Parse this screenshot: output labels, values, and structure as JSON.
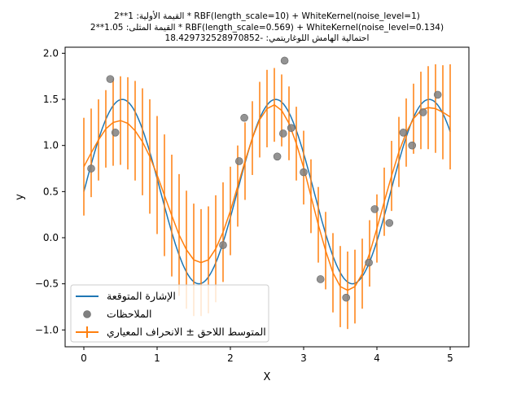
{
  "chart_data": {
    "type": "line",
    "title_lines": [
      "القيمة الأولية: 1**2 * RBF(length_scale=10) + WhiteKernel(noise_level=1)",
      "القيمة المثلى: 1.05**2 * RBF(length_scale=0.569) + WhiteKernel(noise_level=0.134)",
      "احتمالية الهامش اللوغاريتمي: -18.429732528970852"
    ],
    "xlabel": "X",
    "ylabel": "y",
    "xlim": [
      -0.25,
      5.25
    ],
    "ylim": [
      -1.2,
      2.08
    ],
    "xticks": [
      "0",
      "1",
      "2",
      "3",
      "4",
      "5"
    ],
    "xtick_values": [
      0,
      1,
      2,
      3,
      4,
      5
    ],
    "yticks": [
      "−1.0",
      "−0.5",
      "0.0",
      "0.5",
      "1.0",
      "1.5",
      "2.0"
    ],
    "ytick_values": [
      -1.0,
      -0.5,
      0.0,
      0.5,
      1.0,
      1.5,
      2.0
    ],
    "grid": false,
    "legend_position": "lower left",
    "legend": [
      {
        "label": "الإشارة المتوقعة",
        "marker": "line",
        "color": "#1f77b4"
      },
      {
        "label": "الملاحظات",
        "marker": "circle",
        "color": "#808080"
      },
      {
        "label": "المتوسط اللاحق ± الانحراف المعياري",
        "marker": "errorbar",
        "color": "#ff7f0e"
      }
    ],
    "series": [
      {
        "name": "الإشارة المتوقعة",
        "type": "line",
        "color": "#1f77b4",
        "function": "0.5 + sin(3x)",
        "x_range": [
          0,
          5
        ]
      },
      {
        "name": "الملاحظات",
        "type": "scatter",
        "color": "#808080",
        "x": [
          0.1,
          0.36,
          0.43,
          1.9,
          2.12,
          2.19,
          2.64,
          2.72,
          2.74,
          2.83,
          3.0,
          3.23,
          3.58,
          3.89,
          3.97,
          4.17,
          4.36,
          4.48,
          4.63,
          4.83
        ],
        "y": [
          0.75,
          1.72,
          1.14,
          -0.08,
          0.83,
          1.3,
          0.88,
          1.13,
          1.92,
          1.19,
          0.71,
          -0.45,
          -0.65,
          -0.27,
          0.31,
          0.16,
          1.14,
          1.0,
          1.36,
          1.55
        ]
      },
      {
        "name": "المتوسط اللاحق ± الانحراف المعياري",
        "type": "errorbar",
        "color": "#ff7f0e",
        "x": [
          0.0,
          0.1,
          0.2,
          0.3,
          0.4,
          0.5,
          0.6,
          0.7,
          0.8,
          0.9,
          1.0,
          1.1,
          1.2,
          1.3,
          1.4,
          1.5,
          1.6,
          1.7,
          1.8,
          1.9,
          2.0,
          2.1,
          2.2,
          2.3,
          2.4,
          2.5,
          2.6,
          2.7,
          2.8,
          2.9,
          3.0,
          3.1,
          3.2,
          3.3,
          3.4,
          3.5,
          3.6,
          3.7,
          3.8,
          3.9,
          4.0,
          4.1,
          4.2,
          4.3,
          4.4,
          4.5,
          4.6,
          4.7,
          4.8,
          4.9,
          5.0
        ],
        "mean": [
          0.77,
          0.92,
          1.06,
          1.18,
          1.25,
          1.27,
          1.24,
          1.16,
          1.04,
          0.88,
          0.68,
          0.46,
          0.24,
          0.03,
          -0.13,
          -0.24,
          -0.27,
          -0.24,
          -0.12,
          0.06,
          0.29,
          0.56,
          0.83,
          1.08,
          1.28,
          1.4,
          1.44,
          1.38,
          1.24,
          1.02,
          0.76,
          0.45,
          0.14,
          -0.14,
          -0.38,
          -0.53,
          -0.57,
          -0.53,
          -0.39,
          -0.17,
          0.1,
          0.39,
          0.67,
          0.93,
          1.14,
          1.29,
          1.38,
          1.41,
          1.4,
          1.36,
          1.31
        ],
        "std": [
          0.53,
          0.48,
          0.44,
          0.42,
          0.47,
          0.48,
          0.5,
          0.54,
          0.58,
          0.62,
          0.64,
          0.66,
          0.66,
          0.66,
          0.64,
          0.61,
          0.58,
          0.58,
          0.58,
          0.54,
          0.48,
          0.44,
          0.42,
          0.4,
          0.41,
          0.42,
          0.4,
          0.39,
          0.4,
          0.4,
          0.4,
          0.4,
          0.41,
          0.42,
          0.43,
          0.44,
          0.42,
          0.4,
          0.38,
          0.36,
          0.37,
          0.37,
          0.38,
          0.38,
          0.37,
          0.38,
          0.42,
          0.45,
          0.48,
          0.51,
          0.57
        ]
      }
    ]
  }
}
